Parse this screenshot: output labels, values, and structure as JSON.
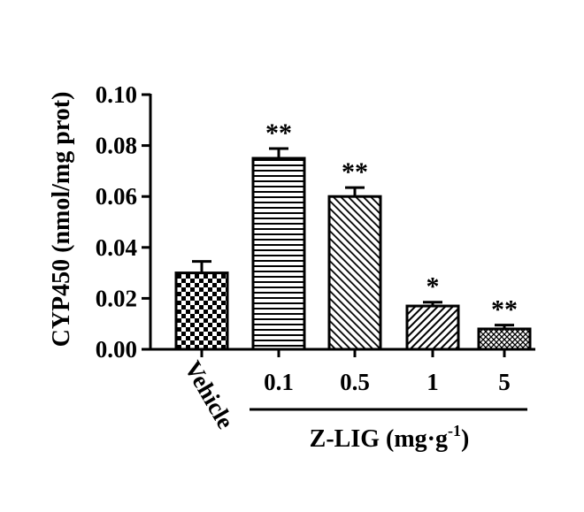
{
  "chart_data": {
    "type": "bar",
    "ylabel": "CYP450 (nmol/mg prot)",
    "xlabel_group": {
      "main": "Z-LIG (mg·g",
      "sup": "-1",
      "close": ")"
    },
    "ylim": [
      0,
      0.1
    ],
    "yticks": [
      "0.00",
      "0.02",
      "0.04",
      "0.06",
      "0.08",
      "0.10"
    ],
    "categories": [
      "Vehicle",
      "0.1",
      "0.5",
      "1",
      "5"
    ],
    "values": [
      0.03,
      0.075,
      0.06,
      0.017,
      0.008
    ],
    "errors": [
      0.0045,
      0.0038,
      0.0035,
      0.0015,
      0.0015
    ],
    "significance": [
      "",
      "**",
      "**",
      "*",
      "**"
    ],
    "patterns": [
      "checker",
      "horizontal",
      "diagonal-right",
      "diagonal-left",
      "crosshatch"
    ],
    "grid": false,
    "legend": "none"
  }
}
